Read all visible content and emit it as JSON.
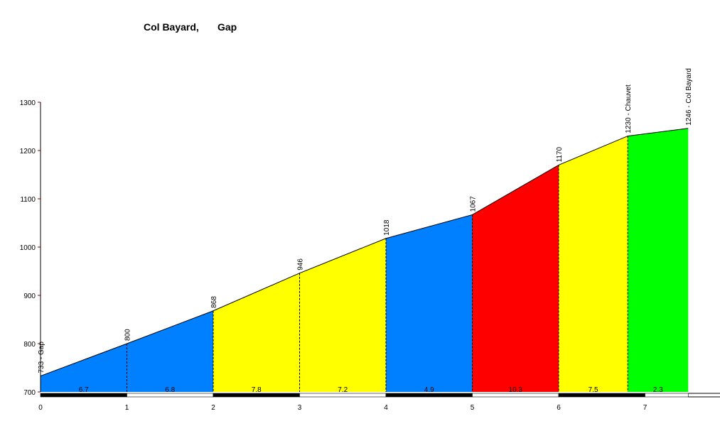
{
  "chart_data": {
    "type": "area",
    "title": "Col Bayard,",
    "subtitle": "Gap",
    "xlabel": "",
    "ylabel": "",
    "xlim": [
      0,
      7.5
    ],
    "ylim": [
      700,
      1300
    ],
    "grid": false,
    "legend": "none",
    "x_ticks": [
      0,
      1,
      2,
      3,
      4,
      5,
      6,
      7
    ],
    "y_ticks": [
      700,
      800,
      900,
      1000,
      1100,
      1200,
      1300
    ],
    "x": [
      0,
      1,
      2,
      3,
      4,
      5,
      6,
      6.8,
      7.5
    ],
    "y": [
      733,
      800,
      868,
      946,
      1018,
      1067,
      1170,
      1230,
      1246
    ],
    "point_labels": [
      "733 - Gap",
      "800",
      "868",
      "946",
      "1018",
      "1067",
      "1170",
      "1230 - Chauvet",
      "1246 - Col Bayard"
    ],
    "segment_gradients": [
      "6.7",
      "6.8",
      "7.8",
      "7.2",
      "4.9",
      "10.3",
      "7.5",
      "2.3"
    ],
    "segment_colors": [
      "#0080ff",
      "#0080ff",
      "#ffff00",
      "#ffff00",
      "#0080ff",
      "#ff0000",
      "#ffff00",
      "#00ff00"
    ]
  }
}
